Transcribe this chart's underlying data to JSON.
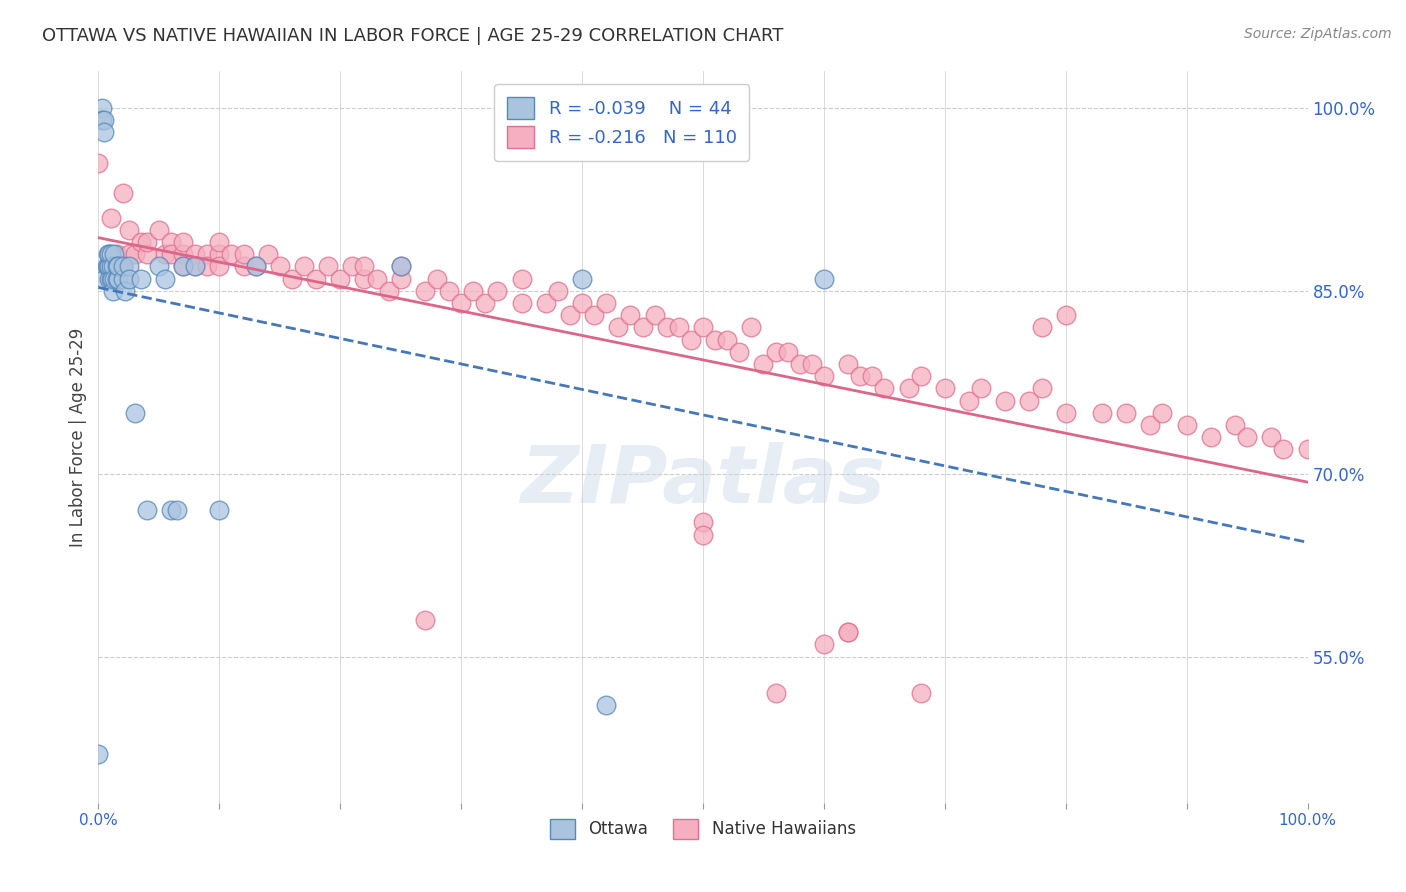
{
  "title": "OTTAWA VS NATIVE HAWAIIAN IN LABOR FORCE | AGE 25-29 CORRELATION CHART",
  "source": "Source: ZipAtlas.com",
  "ylabel": "In Labor Force | Age 25-29",
  "xlim": [
    0.0,
    1.0
  ],
  "ylim": [
    0.43,
    1.03
  ],
  "yticks": [
    0.55,
    0.7,
    0.85,
    1.0
  ],
  "ytick_labels": [
    "55.0%",
    "70.0%",
    "85.0%",
    "100.0%"
  ],
  "xticks": [
    0.0,
    0.1,
    0.2,
    0.3,
    0.4,
    0.5,
    0.6,
    0.7,
    0.8,
    0.9,
    1.0
  ],
  "xtick_labels": [
    "0.0%",
    "",
    "",
    "",
    "",
    "",
    "",
    "",
    "",
    "",
    "100.0%"
  ],
  "grid_color": "#cccccc",
  "bg_color": "#ffffff",
  "legend_R_ottawa": "-0.039",
  "legend_N_ottawa": "44",
  "legend_R_native": "-0.216",
  "legend_N_native": "110",
  "ottawa_color": "#aac4e0",
  "native_color": "#f5afc0",
  "ottawa_edge_color": "#5588bb",
  "native_edge_color": "#e07090",
  "ottawa_line_color": "#4477bb",
  "native_line_color": "#dd6688",
  "axis_color": "#3366cc",
  "ottawa_x": [
    0.003,
    0.003,
    0.005,
    0.005,
    0.005,
    0.007,
    0.008,
    0.008,
    0.009,
    0.009,
    0.009,
    0.01,
    0.01,
    0.01,
    0.011,
    0.012,
    0.012,
    0.013,
    0.013,
    0.015,
    0.015,
    0.016,
    0.016,
    0.02,
    0.02,
    0.022,
    0.025,
    0.025,
    0.03,
    0.035,
    0.04,
    0.05,
    0.055,
    0.06,
    0.065,
    0.07,
    0.08,
    0.1,
    0.13,
    0.25,
    0.4,
    0.42,
    0.6,
    0.0
  ],
  "ottawa_y": [
    1.0,
    0.99,
    0.99,
    0.98,
    0.86,
    0.87,
    0.87,
    0.88,
    0.86,
    0.87,
    0.88,
    0.86,
    0.87,
    0.88,
    0.86,
    0.85,
    0.87,
    0.86,
    0.88,
    0.86,
    0.87,
    0.86,
    0.87,
    0.86,
    0.87,
    0.85,
    0.87,
    0.86,
    0.75,
    0.86,
    0.67,
    0.87,
    0.86,
    0.67,
    0.67,
    0.87,
    0.87,
    0.67,
    0.87,
    0.87,
    0.86,
    0.51,
    0.86,
    0.47
  ],
  "native_x": [
    0.0,
    0.01,
    0.015,
    0.02,
    0.02,
    0.025,
    0.025,
    0.03,
    0.035,
    0.04,
    0.04,
    0.05,
    0.055,
    0.06,
    0.06,
    0.07,
    0.07,
    0.07,
    0.08,
    0.08,
    0.09,
    0.09,
    0.1,
    0.1,
    0.1,
    0.11,
    0.12,
    0.12,
    0.13,
    0.14,
    0.15,
    0.16,
    0.17,
    0.18,
    0.19,
    0.2,
    0.21,
    0.22,
    0.22,
    0.23,
    0.24,
    0.25,
    0.25,
    0.27,
    0.28,
    0.29,
    0.3,
    0.31,
    0.32,
    0.33,
    0.35,
    0.35,
    0.37,
    0.38,
    0.39,
    0.4,
    0.41,
    0.42,
    0.43,
    0.44,
    0.45,
    0.46,
    0.47,
    0.48,
    0.49,
    0.5,
    0.51,
    0.52,
    0.53,
    0.54,
    0.55,
    0.56,
    0.57,
    0.58,
    0.59,
    0.6,
    0.62,
    0.63,
    0.64,
    0.65,
    0.67,
    0.68,
    0.7,
    0.72,
    0.73,
    0.75,
    0.77,
    0.78,
    0.8,
    0.83,
    0.85,
    0.87,
    0.88,
    0.9,
    0.92,
    0.94,
    0.95,
    0.97,
    0.98,
    1.0,
    0.5,
    0.5,
    0.27,
    0.62,
    0.62,
    0.6,
    0.56,
    0.68,
    0.78,
    0.8
  ],
  "native_y": [
    0.955,
    0.91,
    0.88,
    0.93,
    0.87,
    0.88,
    0.9,
    0.88,
    0.89,
    0.88,
    0.89,
    0.9,
    0.88,
    0.89,
    0.88,
    0.88,
    0.87,
    0.89,
    0.88,
    0.87,
    0.88,
    0.87,
    0.88,
    0.87,
    0.89,
    0.88,
    0.87,
    0.88,
    0.87,
    0.88,
    0.87,
    0.86,
    0.87,
    0.86,
    0.87,
    0.86,
    0.87,
    0.86,
    0.87,
    0.86,
    0.85,
    0.86,
    0.87,
    0.85,
    0.86,
    0.85,
    0.84,
    0.85,
    0.84,
    0.85,
    0.84,
    0.86,
    0.84,
    0.85,
    0.83,
    0.84,
    0.83,
    0.84,
    0.82,
    0.83,
    0.82,
    0.83,
    0.82,
    0.82,
    0.81,
    0.82,
    0.81,
    0.81,
    0.8,
    0.82,
    0.79,
    0.8,
    0.8,
    0.79,
    0.79,
    0.78,
    0.79,
    0.78,
    0.78,
    0.77,
    0.77,
    0.78,
    0.77,
    0.76,
    0.77,
    0.76,
    0.76,
    0.77,
    0.75,
    0.75,
    0.75,
    0.74,
    0.75,
    0.74,
    0.73,
    0.74,
    0.73,
    0.73,
    0.72,
    0.72,
    0.66,
    0.65,
    0.58,
    0.57,
    0.57,
    0.56,
    0.52,
    0.52,
    0.82,
    0.83
  ]
}
